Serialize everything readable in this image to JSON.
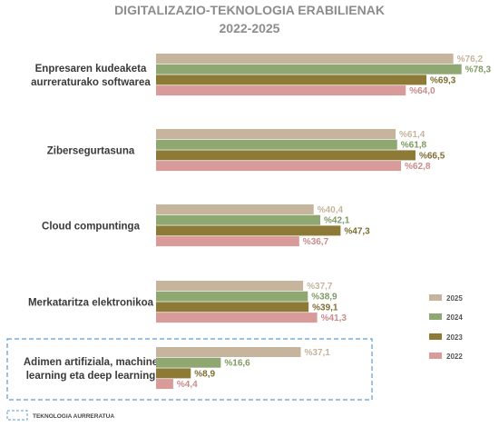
{
  "chart_data": {
    "type": "bar",
    "orientation": "horizontal",
    "title": "DIGITALIZAZIO-TEKNOLOGIA ERABILIENAK",
    "subtitle": "2022-2025",
    "categories": [
      [
        "Enpresaren kudeaketa",
        "aurreraturako softwarea"
      ],
      [
        "Zibersegurtasuna"
      ],
      [
        "Cloud compuntinga"
      ],
      [
        "Merkataritza elektronikoa"
      ],
      [
        "Adimen artifiziala, machine",
        "learning eta deep learning"
      ]
    ],
    "value_prefix": "%",
    "series": [
      {
        "name": "2025",
        "color": "#c6b49d",
        "label_color": "#c6b49d",
        "values": [
          76.2,
          61.4,
          40.4,
          37.7,
          37.1
        ],
        "labels": [
          "76,2",
          "61,4",
          "40,4",
          "37,7",
          "37,1"
        ]
      },
      {
        "name": "2024",
        "color": "#8fa872",
        "label_color": "#7f9a63",
        "values": [
          78.3,
          61.8,
          42.1,
          38.9,
          16.6
        ],
        "labels": [
          "78,3",
          "61,8",
          "42,1",
          "38,9",
          "16,6"
        ]
      },
      {
        "name": "2023",
        "color": "#8c7a36",
        "label_color": "#7e6e30",
        "values": [
          69.3,
          66.5,
          47.3,
          39.1,
          8.9
        ],
        "labels": [
          "69,3",
          "66,5",
          "47,3",
          "39,1",
          "8,9"
        ]
      },
      {
        "name": "2022",
        "color": "#d99a9a",
        "label_color": "#c98b8b",
        "values": [
          64.0,
          62.8,
          36.7,
          41.3,
          4.4
        ],
        "labels": [
          "64,0",
          "62,8",
          "36,7",
          "41,3",
          "4,4"
        ]
      }
    ],
    "xlim": [
      0,
      100
    ],
    "grid": false,
    "legend_position": "right",
    "highlighted_category": 4,
    "highlight_note": "TEKNOLOGIA AURRERATUA",
    "highlight_color": "#5a9bd5"
  }
}
